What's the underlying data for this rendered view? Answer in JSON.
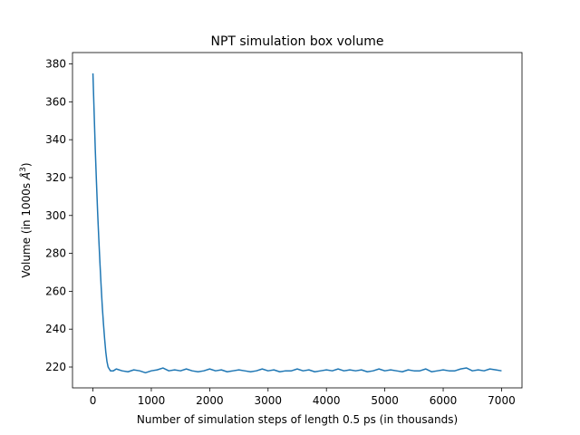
{
  "chart_data": {
    "type": "line",
    "title": "NPT simulation box volume",
    "xlabel": "Number of simulation steps of length 0.5 ps (in thousands)",
    "ylabel_prefix": "Volume (in 1000s ",
    "ylabel_unit": "Å",
    "ylabel_exp": "3",
    "ylabel_suffix": ")",
    "xlim": [
      -350,
      7350
    ],
    "ylim": [
      209,
      386
    ],
    "xticks": [
      0,
      1000,
      2000,
      3000,
      4000,
      5000,
      6000,
      7000
    ],
    "yticks": [
      220,
      240,
      260,
      280,
      300,
      320,
      340,
      360,
      380
    ],
    "grid": false,
    "series": [
      {
        "color": "#1f77b4",
        "x": [
          0,
          20,
          40,
          60,
          80,
          100,
          120,
          140,
          160,
          180,
          200,
          220,
          240,
          260,
          280,
          300,
          350,
          400,
          500,
          600,
          700,
          800,
          900,
          1000,
          1100,
          1200,
          1300,
          1400,
          1500,
          1600,
          1700,
          1800,
          1900,
          2000,
          2100,
          2200,
          2300,
          2400,
          2500,
          2600,
          2700,
          2800,
          2900,
          3000,
          3100,
          3200,
          3300,
          3400,
          3500,
          3600,
          3700,
          3800,
          3900,
          4000,
          4100,
          4200,
          4300,
          4400,
          4500,
          4600,
          4700,
          4800,
          4900,
          5000,
          5100,
          5200,
          5300,
          5400,
          5500,
          5600,
          5700,
          5800,
          5900,
          6000,
          6100,
          6200,
          6300,
          6400,
          6500,
          6600,
          6700,
          6800,
          6900,
          7000
        ],
        "y": [
          375,
          355,
          335,
          318,
          302,
          288,
          275,
          263,
          252,
          243,
          235,
          228,
          223,
          220,
          219,
          218,
          218,
          219,
          218,
          217.5,
          218.5,
          218,
          217,
          218,
          218.5,
          219.5,
          218,
          218.5,
          218,
          219,
          218,
          217.5,
          218,
          219,
          218,
          218.5,
          217.5,
          218,
          218.5,
          218,
          217.5,
          218,
          219,
          218,
          218.5,
          217.5,
          218,
          218,
          219,
          218,
          218.5,
          217.5,
          218,
          218.5,
          218,
          219,
          218,
          218.5,
          218,
          218.5,
          217.5,
          218,
          219,
          218,
          218.5,
          218,
          217.5,
          218.5,
          218,
          218,
          219,
          217.5,
          218,
          218.5,
          218,
          218,
          219,
          219.5,
          218,
          218.5,
          218,
          219,
          218.5,
          218
        ]
      }
    ]
  }
}
